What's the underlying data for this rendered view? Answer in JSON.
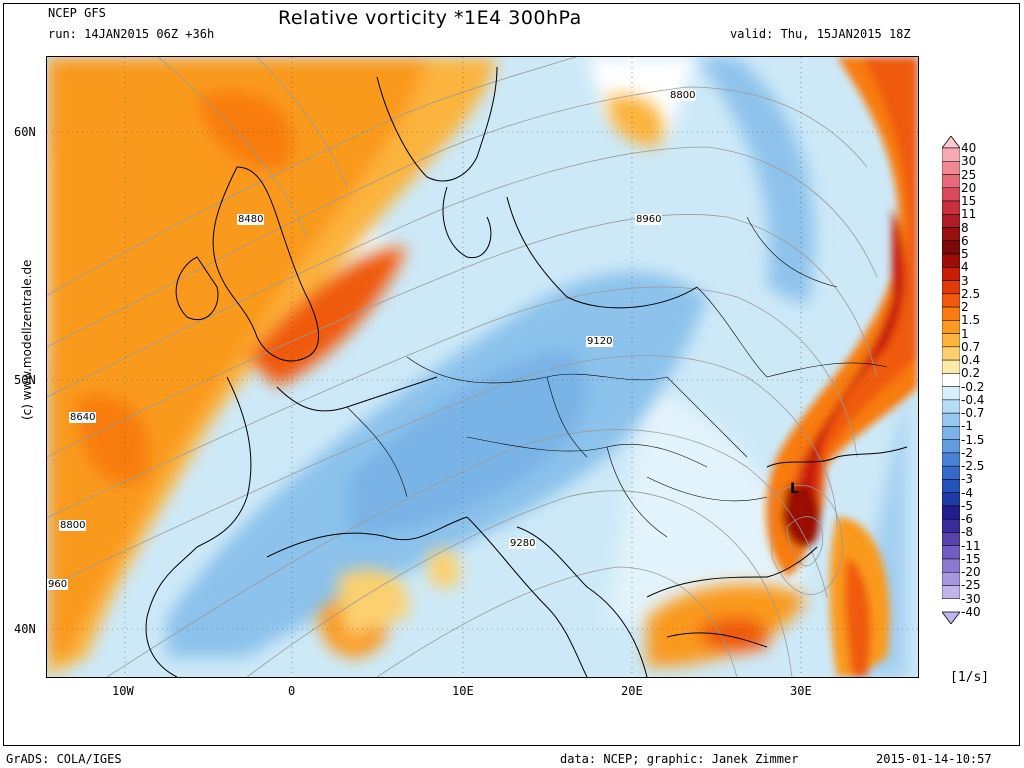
{
  "header": {
    "model": "NCEP GFS",
    "run": "run: 14JAN2015 06Z +36h",
    "title": "Relative vorticity *1E4 300hPa",
    "valid": "valid: Thu, 15JAN2015 18Z"
  },
  "axes": {
    "lat_labels": [
      "60N",
      "50N",
      "40N"
    ],
    "lon_labels": [
      "10W",
      "0",
      "10E",
      "20E",
      "30E"
    ]
  },
  "contour_labels": [
    "8800",
    "8480",
    "8960",
    "9120",
    "8640",
    "8800",
    "9280",
    "960"
  ],
  "low_marker": "L",
  "colorbar": {
    "labels": [
      "40",
      "30",
      "25",
      "20",
      "15",
      "11",
      "8",
      "6",
      "5",
      "4",
      "3",
      "2.5",
      "2",
      "1.5",
      "1",
      "0.7",
      "0.4",
      "0.2",
      "-0.2",
      "-0.4",
      "-0.7",
      "-1",
      "-1.5",
      "-2",
      "-2.5",
      "-3",
      "-4",
      "-5",
      "-6",
      "-8",
      "-11",
      "-15",
      "-20",
      "-25",
      "-30",
      "-40"
    ],
    "colors": [
      "#f7c9cf",
      "#f4aab3",
      "#ef8a95",
      "#e66a78",
      "#d94a5a",
      "#c8303c",
      "#b01c24",
      "#961010",
      "#7a0a0a",
      "#9a0e06",
      "#c81e08",
      "#e03a08",
      "#f05a0c",
      "#f87c10",
      "#fa9a1e",
      "#fbb43c",
      "#fcd070",
      "#fde9a8",
      "#ffffff",
      "#d7effa",
      "#b5ddf5",
      "#97c9ee",
      "#7cb3e6",
      "#609cde",
      "#4a83d4",
      "#376ac8",
      "#2653b8",
      "#1c3ca4",
      "#201e8e",
      "#3a2c98",
      "#5644ac",
      "#715ec0",
      "#8c7ad0",
      "#a698de",
      "#c0b4ea"
    ],
    "unit": "[1/s]"
  },
  "credit": "(c) www.modellzentrale.de",
  "footer": {
    "left": "GrADS: COLA/IGES",
    "data": "data: NCEP; graphic: Janek Zimmer",
    "timestamp": "2015-01-14-10:57"
  }
}
